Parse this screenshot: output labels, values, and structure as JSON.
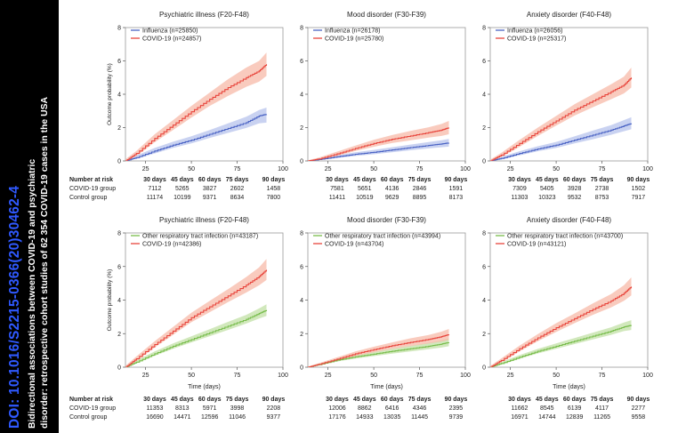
{
  "sidebar": {
    "doi": "DOI: 10.1016/S2215-0366(20)30462-4",
    "title_line1": "Bidirectional associations between COVID-19 and psychiatric",
    "title_line2": "disorder: retrospective cohort studies of 62 354 COVID-19 cases in the USA"
  },
  "colors": {
    "covid": "#e8453c",
    "influenza": "#4a63c4",
    "respiratory": "#78bd4c",
    "band_covid": "#f7b9a8",
    "band_influenza": "#b7c3ec",
    "band_respiratory": "#c2e0a6"
  },
  "shared": {
    "ylabel": "Outcome probability (%)",
    "xlabel": "Time (days)",
    "number_at_risk_label": "Number at risk",
    "risk_days": [
      "30 days",
      "45 days",
      "60 days",
      "75 days",
      "90 days"
    ],
    "risk_row_labels": [
      "COVID-19 group",
      "Control group"
    ]
  },
  "chart_data": [
    {
      "type": "line",
      "panel": "top-left",
      "title": "Psychiatric illness (F20-F48)",
      "xlim": [
        14,
        100
      ],
      "ylim": [
        0,
        8
      ],
      "xticks": [
        25,
        50,
        75,
        100
      ],
      "yticks": [
        0,
        2,
        4,
        6,
        8
      ],
      "legend": "top-left",
      "series": [
        {
          "name": "Influenza (n=25850)",
          "color": "influenza",
          "x": [
            14,
            20,
            30,
            40,
            50,
            60,
            70,
            80,
            87,
            91
          ],
          "y": [
            0,
            0.2,
            0.6,
            0.95,
            1.25,
            1.6,
            1.95,
            2.3,
            2.7,
            2.8
          ],
          "lower": [
            0,
            0.12,
            0.45,
            0.78,
            1.05,
            1.38,
            1.68,
            1.98,
            2.25,
            2.3
          ],
          "upper": [
            0.05,
            0.32,
            0.78,
            1.15,
            1.48,
            1.85,
            2.25,
            2.65,
            3.05,
            3.2
          ]
        },
        {
          "name": "COVID-19 (n=24857)",
          "color": "covid",
          "x": [
            14,
            20,
            30,
            40,
            50,
            60,
            70,
            80,
            87,
            91
          ],
          "y": [
            0,
            0.45,
            1.35,
            2.15,
            2.95,
            3.7,
            4.4,
            5.0,
            5.4,
            5.8
          ],
          "lower": [
            0,
            0.3,
            1.12,
            1.85,
            2.6,
            3.3,
            3.9,
            4.45,
            4.75,
            5.1
          ],
          "upper": [
            0.1,
            0.6,
            1.6,
            2.45,
            3.3,
            4.1,
            4.9,
            5.6,
            6.0,
            6.5
          ]
        }
      ],
      "risk": {
        "covid": [
          7112,
          5265,
          3827,
          2602,
          1458
        ],
        "control": [
          11174,
          10199,
          9371,
          8634,
          7800
        ]
      }
    },
    {
      "type": "line",
      "panel": "top-middle",
      "title": "Mood disorder (F30-F39)",
      "xlim": [
        14,
        100
      ],
      "ylim": [
        0,
        8
      ],
      "xticks": [
        25,
        50,
        75,
        100
      ],
      "yticks": [
        0,
        2,
        4,
        6,
        8
      ],
      "legend": "top-left",
      "series": [
        {
          "name": "Influenza (n=26178)",
          "color": "influenza",
          "x": [
            14,
            20,
            30,
            40,
            50,
            60,
            70,
            80,
            87,
            91
          ],
          "y": [
            0,
            0.08,
            0.25,
            0.4,
            0.52,
            0.66,
            0.8,
            0.93,
            1.02,
            1.08
          ],
          "lower": [
            0,
            0.04,
            0.17,
            0.3,
            0.4,
            0.52,
            0.64,
            0.75,
            0.82,
            0.86
          ],
          "upper": [
            0.02,
            0.14,
            0.34,
            0.52,
            0.66,
            0.82,
            0.98,
            1.13,
            1.24,
            1.32
          ]
        },
        {
          "name": "COVID-19 (n=25780)",
          "color": "covid",
          "x": [
            14,
            20,
            30,
            40,
            50,
            60,
            70,
            80,
            87,
            91
          ],
          "y": [
            0,
            0.12,
            0.42,
            0.75,
            1.05,
            1.3,
            1.5,
            1.7,
            1.85,
            2.0
          ],
          "lower": [
            0,
            0.06,
            0.3,
            0.6,
            0.85,
            1.07,
            1.23,
            1.4,
            1.5,
            1.6
          ],
          "upper": [
            0.04,
            0.2,
            0.56,
            0.92,
            1.27,
            1.55,
            1.8,
            2.02,
            2.22,
            2.4
          ]
        }
      ],
      "risk": {
        "covid": [
          7581,
          5651,
          4136,
          2846,
          1591
        ],
        "control": [
          11411,
          10519,
          9629,
          8895,
          8173
        ]
      }
    },
    {
      "type": "line",
      "panel": "top-right",
      "title": "Anxiety disorder (F40-F48)",
      "xlim": [
        14,
        100
      ],
      "ylim": [
        0,
        8
      ],
      "xticks": [
        25,
        50,
        75,
        100
      ],
      "yticks": [
        0,
        2,
        4,
        6,
        8
      ],
      "legend": "top-left",
      "series": [
        {
          "name": "Influenza (n=26056)",
          "color": "influenza",
          "x": [
            14,
            20,
            30,
            40,
            50,
            60,
            70,
            80,
            87,
            91
          ],
          "y": [
            0,
            0.15,
            0.45,
            0.72,
            0.95,
            1.25,
            1.55,
            1.85,
            2.1,
            2.25
          ],
          "lower": [
            0,
            0.08,
            0.33,
            0.58,
            0.78,
            1.05,
            1.3,
            1.57,
            1.78,
            1.9
          ],
          "upper": [
            0.04,
            0.24,
            0.58,
            0.88,
            1.14,
            1.47,
            1.82,
            2.15,
            2.45,
            2.62
          ]
        },
        {
          "name": "COVID-19 (n=25317)",
          "color": "covid",
          "x": [
            14,
            20,
            30,
            40,
            50,
            60,
            70,
            80,
            87,
            91
          ],
          "y": [
            0,
            0.35,
            1.05,
            1.75,
            2.4,
            3.05,
            3.6,
            4.15,
            4.55,
            5.0
          ],
          "lower": [
            0,
            0.22,
            0.85,
            1.5,
            2.12,
            2.72,
            3.22,
            3.7,
            4.05,
            4.4
          ],
          "upper": [
            0.08,
            0.48,
            1.26,
            2.0,
            2.7,
            3.4,
            4.0,
            4.6,
            5.05,
            5.6
          ]
        }
      ],
      "risk": {
        "covid": [
          7309,
          5405,
          3928,
          2738,
          1502
        ],
        "control": [
          11303,
          10323,
          9532,
          8753,
          7917
        ]
      }
    },
    {
      "type": "line",
      "panel": "bottom-left",
      "title": "Psychiatric illness (F20-F48)",
      "xlim": [
        14,
        100
      ],
      "ylim": [
        0,
        8
      ],
      "xticks": [
        25,
        50,
        75,
        100
      ],
      "yticks": [
        0,
        2,
        4,
        6,
        8
      ],
      "legend": "top-left",
      "series": [
        {
          "name": "Other respiratory tract infection (n=43187)",
          "color": "respiratory",
          "x": [
            14,
            20,
            30,
            40,
            50,
            60,
            70,
            80,
            87,
            91
          ],
          "y": [
            0,
            0.3,
            0.8,
            1.25,
            1.65,
            2.05,
            2.45,
            2.85,
            3.2,
            3.4
          ],
          "lower": [
            0,
            0.22,
            0.68,
            1.1,
            1.48,
            1.85,
            2.22,
            2.6,
            2.9,
            3.05
          ],
          "upper": [
            0.05,
            0.4,
            0.94,
            1.42,
            1.84,
            2.26,
            2.7,
            3.12,
            3.5,
            3.75
          ]
        },
        {
          "name": "COVID-19 (n=42386)",
          "color": "covid",
          "x": [
            14,
            20,
            30,
            40,
            50,
            60,
            70,
            80,
            87,
            91
          ],
          "y": [
            0,
            0.5,
            1.35,
            2.15,
            2.95,
            3.6,
            4.25,
            4.9,
            5.4,
            5.8
          ],
          "lower": [
            0,
            0.37,
            1.17,
            1.93,
            2.68,
            3.28,
            3.88,
            4.45,
            4.88,
            5.2
          ],
          "upper": [
            0.08,
            0.64,
            1.55,
            2.4,
            3.25,
            3.95,
            4.65,
            5.38,
            5.95,
            6.45
          ]
        }
      ],
      "risk": {
        "covid": [
          11353,
          8313,
          5971,
          3998,
          2208
        ],
        "control": [
          16690,
          14471,
          12596,
          11046,
          9377
        ]
      }
    },
    {
      "type": "line",
      "panel": "bottom-middle",
      "title": "Mood disorder (F30-F39)",
      "xlim": [
        14,
        100
      ],
      "ylim": [
        0,
        8
      ],
      "xticks": [
        25,
        50,
        75,
        100
      ],
      "yticks": [
        0,
        2,
        4,
        6,
        8
      ],
      "legend": "top-left",
      "series": [
        {
          "name": "Other respiratory tract infection (n=43994)",
          "color": "respiratory",
          "x": [
            14,
            20,
            30,
            40,
            50,
            60,
            70,
            80,
            87,
            91
          ],
          "y": [
            0,
            0.15,
            0.42,
            0.62,
            0.78,
            0.95,
            1.1,
            1.25,
            1.38,
            1.48
          ],
          "lower": [
            0,
            0.1,
            0.34,
            0.52,
            0.66,
            0.81,
            0.94,
            1.07,
            1.17,
            1.25
          ],
          "upper": [
            0.03,
            0.21,
            0.5,
            0.73,
            0.91,
            1.1,
            1.27,
            1.45,
            1.6,
            1.72
          ]
        },
        {
          "name": "COVID-19 (n=43704)",
          "color": "covid",
          "x": [
            14,
            20,
            30,
            40,
            50,
            60,
            70,
            80,
            87,
            91
          ],
          "y": [
            0,
            0.17,
            0.48,
            0.8,
            1.05,
            1.28,
            1.48,
            1.66,
            1.82,
            1.95
          ],
          "lower": [
            0,
            0.11,
            0.38,
            0.67,
            0.89,
            1.09,
            1.26,
            1.41,
            1.53,
            1.63
          ],
          "upper": [
            0.04,
            0.24,
            0.59,
            0.94,
            1.22,
            1.48,
            1.72,
            1.92,
            2.12,
            2.28
          ]
        }
      ],
      "risk": {
        "covid": [
          12006,
          8862,
          6416,
          4346,
          2395
        ],
        "control": [
          17176,
          14933,
          13035,
          11445,
          9739
        ]
      }
    },
    {
      "type": "line",
      "panel": "bottom-right",
      "title": "Anxiety disorder (F40-F48)",
      "xlim": [
        14,
        100
      ],
      "ylim": [
        0,
        8
      ],
      "xticks": [
        25,
        50,
        75,
        100
      ],
      "yticks": [
        0,
        2,
        4,
        6,
        8
      ],
      "legend": "top-left",
      "series": [
        {
          "name": "Other respiratory tract infection (n=43700)",
          "color": "respiratory",
          "x": [
            14,
            20,
            30,
            40,
            50,
            60,
            70,
            80,
            87,
            91
          ],
          "y": [
            0,
            0.22,
            0.6,
            0.95,
            1.25,
            1.55,
            1.85,
            2.15,
            2.4,
            2.5
          ],
          "lower": [
            0,
            0.15,
            0.5,
            0.82,
            1.1,
            1.38,
            1.66,
            1.93,
            2.15,
            2.22
          ],
          "upper": [
            0.04,
            0.3,
            0.72,
            1.09,
            1.42,
            1.74,
            2.06,
            2.38,
            2.66,
            2.8
          ]
        },
        {
          "name": "COVID-19 (n=43121)",
          "color": "covid",
          "x": [
            14,
            20,
            30,
            40,
            50,
            60,
            70,
            80,
            87,
            91
          ],
          "y": [
            0,
            0.4,
            1.1,
            1.75,
            2.35,
            2.9,
            3.45,
            3.95,
            4.4,
            4.8
          ],
          "lower": [
            0,
            0.28,
            0.94,
            1.55,
            2.1,
            2.62,
            3.12,
            3.56,
            3.95,
            4.28
          ],
          "upper": [
            0.08,
            0.52,
            1.28,
            1.97,
            2.62,
            3.2,
            3.8,
            4.36,
            4.88,
            5.35
          ]
        }
      ],
      "risk": {
        "covid": [
          11662,
          8545,
          6139,
          4117,
          2277
        ],
        "control": [
          16971,
          14744,
          12839,
          11265,
          9558
        ]
      }
    }
  ]
}
